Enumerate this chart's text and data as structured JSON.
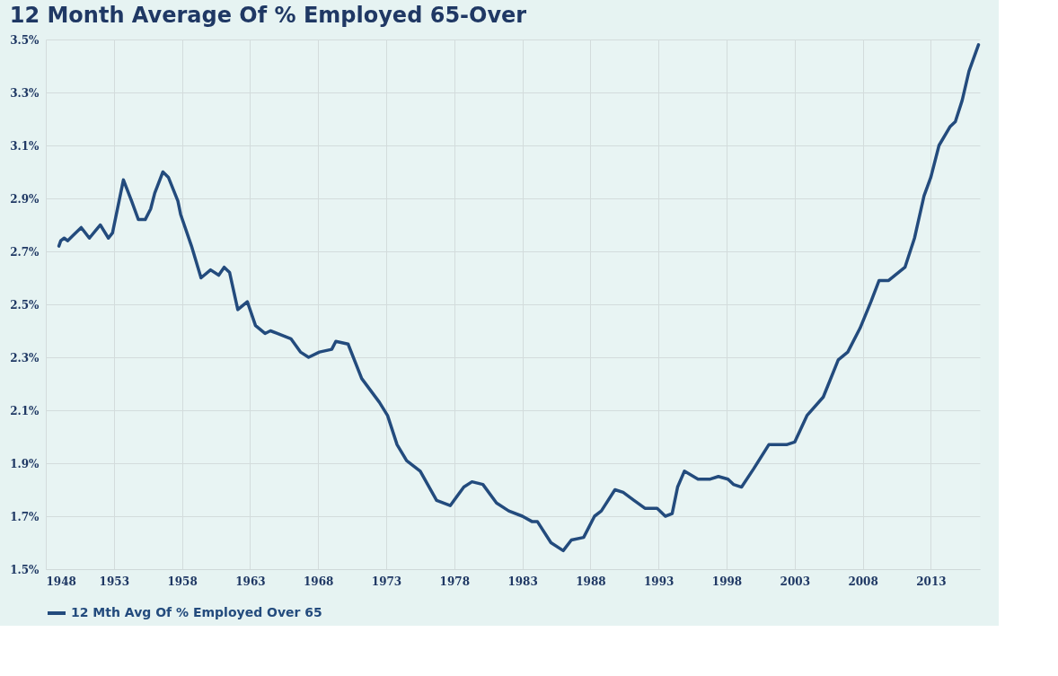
{
  "chart_data": {
    "type": "line",
    "title": "12 Month Average Of % Employed  65-Over",
    "x": [
      1948.96,
      1949.1,
      1949.35,
      1949.6,
      1950.0,
      1950.6,
      1951.2,
      1952.0,
      1952.6,
      1952.9,
      1953.3,
      1953.7,
      1954.3,
      1954.8,
      1955.3,
      1955.7,
      1956.0,
      1956.6,
      1957.0,
      1957.7,
      1957.9,
      1958.7,
      1959.4,
      1960.1,
      1960.7,
      1961.1,
      1961.5,
      1962.1,
      1962.8,
      1963.4,
      1964.1,
      1964.5,
      1965.0,
      1966.0,
      1966.7,
      1967.3,
      1968.1,
      1969.0,
      1969.3,
      1970.2,
      1971.2,
      1972.5,
      1973.1,
      1973.8,
      1974.5,
      1975.5,
      1976.7,
      1977.7,
      1978.7,
      1979.3,
      1980.1,
      1981.1,
      1982.0,
      1983.0,
      1983.7,
      1984.1,
      1985.1,
      1986.0,
      1986.6,
      1987.5,
      1988.3,
      1988.8,
      1989.8,
      1990.4,
      1991.2,
      1992.0,
      1992.9,
      1993.5,
      1994.0,
      1994.4,
      1994.9,
      1995.9,
      1996.8,
      1997.4,
      1998.1,
      1998.5,
      1999.1,
      2000.0,
      2001.1,
      2002.4,
      2003.0,
      2003.9,
      2005.1,
      2006.2,
      2006.9,
      2007.8,
      2008.6,
      2009.2,
      2009.9,
      2011.1,
      2011.8,
      2012.5,
      2013.0,
      2013.6,
      2014.4,
      2014.8,
      2015.3,
      2015.8,
      2016.5
    ],
    "series": [
      {
        "name": "12 Mth Avg Of % Employed Over 65",
        "color": "#234b7d",
        "values": [
          2.72,
          2.74,
          2.75,
          2.74,
          2.76,
          2.79,
          2.75,
          2.8,
          2.75,
          2.77,
          2.87,
          2.97,
          2.89,
          2.82,
          2.82,
          2.86,
          2.92,
          3.0,
          2.98,
          2.89,
          2.84,
          2.72,
          2.6,
          2.63,
          2.61,
          2.64,
          2.62,
          2.48,
          2.51,
          2.42,
          2.39,
          2.4,
          2.39,
          2.37,
          2.32,
          2.3,
          2.32,
          2.33,
          2.36,
          2.35,
          2.22,
          2.13,
          2.08,
          1.97,
          1.91,
          1.87,
          1.76,
          1.74,
          1.81,
          1.83,
          1.82,
          1.75,
          1.72,
          1.7,
          1.68,
          1.68,
          1.6,
          1.57,
          1.61,
          1.62,
          1.7,
          1.72,
          1.8,
          1.79,
          1.76,
          1.73,
          1.73,
          1.7,
          1.71,
          1.81,
          1.87,
          1.84,
          1.84,
          1.85,
          1.84,
          1.82,
          1.81,
          1.88,
          1.97,
          1.97,
          1.98,
          2.08,
          2.15,
          2.29,
          2.32,
          2.41,
          2.51,
          2.59,
          2.59,
          2.64,
          2.75,
          2.91,
          2.98,
          3.1,
          3.17,
          3.19,
          3.27,
          3.38,
          3.48
        ]
      }
    ],
    "xlim": [
      1948,
      2016.6
    ],
    "xticks": [
      1948,
      1953,
      1958,
      1963,
      1968,
      1973,
      1978,
      1983,
      1988,
      1993,
      1998,
      2003,
      2008,
      2013
    ],
    "ylim": [
      1.5,
      3.5
    ],
    "yticks": [
      {
        "value": 1.5,
        "label": "1.5%"
      },
      {
        "value": 1.7,
        "label": "1.7%"
      },
      {
        "value": 1.9,
        "label": "1.9%"
      },
      {
        "value": 2.1,
        "label": "2.1%"
      },
      {
        "value": 2.3,
        "label": "2.3%"
      },
      {
        "value": 2.5,
        "label": "2.5%"
      },
      {
        "value": 2.7,
        "label": "2.7%"
      },
      {
        "value": 2.9,
        "label": "2.9%"
      },
      {
        "value": 3.1,
        "label": "3.1%"
      },
      {
        "value": 3.3,
        "label": "3.3%"
      },
      {
        "value": 3.5,
        "label": "3.5%"
      }
    ],
    "grid": true,
    "legend": "bottom",
    "marker": "none",
    "line_style": "solid"
  }
}
